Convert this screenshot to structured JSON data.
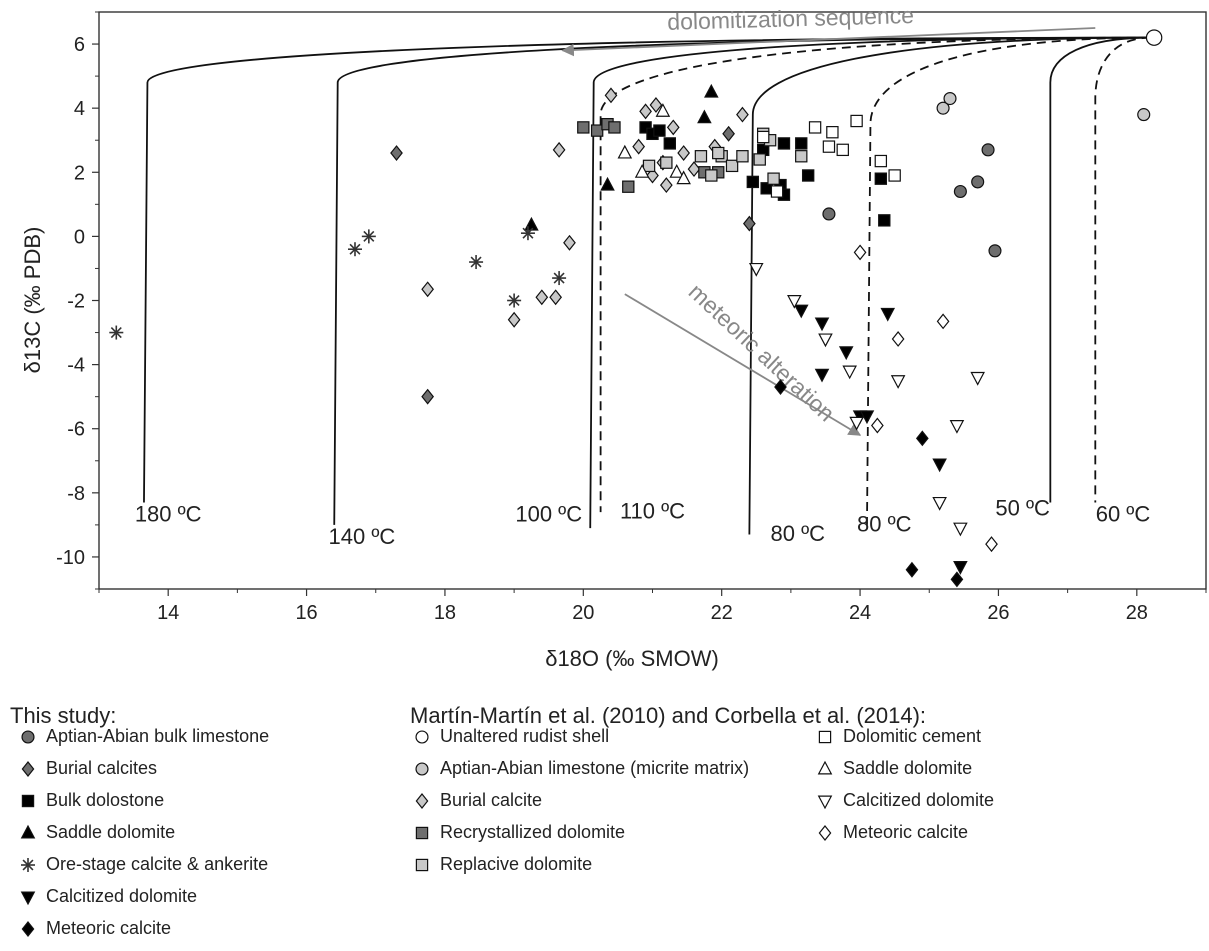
{
  "chart_data": {
    "type": "scatter",
    "title": "",
    "xlabel": "δ18O (‰ SMOW)",
    "ylabel": "δ13C (‰ PDB)",
    "xlim": [
      13,
      29
    ],
    "ylim": [
      -11,
      7
    ],
    "xticks": [
      14,
      16,
      18,
      20,
      22,
      24,
      26,
      28
    ],
    "yticks": [
      6,
      4,
      2,
      0,
      -2,
      -4,
      -6,
      -8,
      -10
    ],
    "grid": false,
    "curves": [
      {
        "label": "180 ºC",
        "style": "solid",
        "start": [
          28.2,
          6.2
        ],
        "corner": [
          13.7,
          4.8
        ],
        "end": [
          13.65,
          -8.3
        ]
      },
      {
        "label": "140 ºC",
        "style": "solid",
        "start": [
          28.2,
          6.2
        ],
        "corner": [
          16.45,
          4.8
        ],
        "end": [
          16.4,
          -9.0
        ]
      },
      {
        "label": "100 ºC",
        "style": "solid",
        "start": [
          28.2,
          6.2
        ],
        "corner": [
          20.15,
          4.8
        ],
        "end": [
          20.1,
          -9.1
        ]
      },
      {
        "label": "110 ºC",
        "style": "dashed",
        "start": [
          28.2,
          6.2
        ],
        "corner": [
          20.25,
          3.8
        ],
        "end": [
          20.25,
          -8.6
        ]
      },
      {
        "label": "80 ºC",
        "style": "solid",
        "start": [
          28.2,
          6.2
        ],
        "corner": [
          22.45,
          3.8
        ],
        "end": [
          22.4,
          -9.3
        ]
      },
      {
        "label": "80 ºC",
        "style": "dashed",
        "start": [
          28.2,
          6.2
        ],
        "corner": [
          24.15,
          3.5
        ],
        "end": [
          24.1,
          -9.0
        ]
      },
      {
        "label": "50 ºC",
        "style": "solid",
        "start": [
          28.2,
          6.2
        ],
        "corner": [
          26.75,
          4.8
        ],
        "end": [
          26.75,
          -8.3
        ]
      },
      {
        "label": "60 ºC",
        "style": "dashed",
        "start": [
          28.2,
          6.2
        ],
        "corner": [
          27.4,
          4.3
        ],
        "end": [
          27.4,
          -8.3
        ]
      }
    ],
    "curve_labels": [
      {
        "text": "180 ºC",
        "x": 14.0,
        "y": -8.9
      },
      {
        "text": "140 ºC",
        "x": 16.8,
        "y": -9.6
      },
      {
        "text": "100 ºC",
        "x": 19.5,
        "y": -8.9
      },
      {
        "text": "110 ºC",
        "x": 21.0,
        "y": -8.8
      },
      {
        "text": "80 ºC",
        "x": 23.1,
        "y": -9.5
      },
      {
        "text": "80 ºC",
        "x": 24.35,
        "y": -9.2
      },
      {
        "text": "50 ºC",
        "x": 26.35,
        "y": -8.7
      },
      {
        "text": "60 ºC",
        "x": 27.8,
        "y": -8.9
      }
    ],
    "arrows": [
      {
        "label": "dolomitization sequence",
        "from": [
          27.4,
          6.5
        ],
        "to": [
          19.7,
          5.8
        ],
        "label_x": 23.0,
        "label_y": 6.55,
        "rotate": -1.6
      },
      {
        "label": "meteoric alteration",
        "from": [
          20.6,
          -1.8
        ],
        "to": [
          24.0,
          -6.2
        ],
        "label_x": 22.5,
        "label_y": -3.8,
        "rotate": 43
      }
    ],
    "series": [
      {
        "name": "Aptian-Abian bulk limestone",
        "group": "This study",
        "marker": "circle",
        "fill": "#6e6e6e",
        "points": [
          [
            23.55,
            0.7
          ],
          [
            25.45,
            1.4
          ],
          [
            25.7,
            1.7
          ],
          [
            25.85,
            2.7
          ],
          [
            25.95,
            -0.45
          ]
        ]
      },
      {
        "name": "Burial calcites",
        "group": "This study",
        "marker": "diamond",
        "fill": "#6e6e6e",
        "points": [
          [
            17.3,
            2.6
          ],
          [
            17.75,
            -5.0
          ],
          [
            22.4,
            0.4
          ],
          [
            22.1,
            3.2
          ]
        ]
      },
      {
        "name": "Bulk dolostone",
        "group": "This study",
        "marker": "square",
        "fill": "#000000",
        "points": [
          [
            20.9,
            3.4
          ],
          [
            21.0,
            3.2
          ],
          [
            21.1,
            3.3
          ],
          [
            21.25,
            2.9
          ],
          [
            22.45,
            1.7
          ],
          [
            22.6,
            2.7
          ],
          [
            22.65,
            1.5
          ],
          [
            22.9,
            2.9
          ],
          [
            22.85,
            1.6
          ],
          [
            22.9,
            1.3
          ],
          [
            23.15,
            2.9
          ],
          [
            23.25,
            1.9
          ],
          [
            24.3,
            1.8
          ],
          [
            24.35,
            0.5
          ]
        ]
      },
      {
        "name": "Saddle dolomite",
        "group": "This study",
        "marker": "triangle-up",
        "fill": "#000000",
        "points": [
          [
            20.35,
            1.6
          ],
          [
            21.75,
            3.7
          ],
          [
            21.85,
            4.5
          ],
          [
            19.25,
            0.35
          ]
        ]
      },
      {
        "name": "Ore-stage calcite & ankerite",
        "group": "This study",
        "marker": "asterisk",
        "fill": "#333333",
        "points": [
          [
            13.25,
            -3.0
          ],
          [
            16.7,
            -0.4
          ],
          [
            16.9,
            0.0
          ],
          [
            18.45,
            -0.8
          ],
          [
            19.0,
            -2.0
          ],
          [
            19.2,
            0.1
          ],
          [
            19.65,
            -1.3
          ]
        ]
      },
      {
        "name": "Calcitized dolomite",
        "group": "This study",
        "marker": "triangle-down",
        "fill": "#000000",
        "points": [
          [
            23.15,
            -2.3
          ],
          [
            23.45,
            -2.7
          ],
          [
            23.45,
            -4.3
          ],
          [
            23.8,
            -3.6
          ],
          [
            24.0,
            -5.6
          ],
          [
            24.1,
            -5.6
          ],
          [
            24.4,
            -2.4
          ],
          [
            25.15,
            -7.1
          ],
          [
            25.45,
            -10.3
          ]
        ]
      },
      {
        "name": "Meteoric calcite",
        "group": "This study",
        "marker": "diamond",
        "fill": "#000000",
        "points": [
          [
            22.85,
            -4.7
          ],
          [
            24.75,
            -10.4
          ],
          [
            24.9,
            -6.3
          ],
          [
            25.4,
            -10.7
          ]
        ]
      },
      {
        "name": "Unaltered rudist shell",
        "group": "Martín-Martín et al. (2010) and Corbella et al. (2014)",
        "marker": "circle",
        "fill": "#ffffff",
        "points": [
          [
            28.25,
            6.2
          ]
        ]
      },
      {
        "name": "Aptian-Abian limestone (micrite matrix)",
        "group": "Martín-Martín et al. (2010) and Corbella et al. (2014)",
        "marker": "circle",
        "fill": "#c8c8c8",
        "points": [
          [
            25.2,
            4.0
          ],
          [
            25.3,
            4.3
          ],
          [
            28.1,
            3.8
          ]
        ]
      },
      {
        "name": "Burial calcite",
        "group": "Martín-Martín et al. (2010) and Corbella et al. (2014)",
        "marker": "diamond",
        "fill": "#c8c8c8",
        "points": [
          [
            20.4,
            4.4
          ],
          [
            19.65,
            2.7
          ],
          [
            19.8,
            -0.2
          ],
          [
            17.75,
            -1.65
          ],
          [
            19.0,
            -2.6
          ],
          [
            19.4,
            -1.9
          ],
          [
            19.6,
            -1.9
          ],
          [
            20.8,
            2.8
          ],
          [
            20.9,
            3.9
          ],
          [
            21.05,
            4.1
          ],
          [
            21.15,
            2.3
          ],
          [
            21.3,
            3.4
          ],
          [
            21.45,
            2.6
          ],
          [
            21.6,
            2.1
          ],
          [
            21.9,
            2.8
          ],
          [
            22.3,
            3.8
          ],
          [
            21.0,
            1.9
          ],
          [
            21.2,
            1.6
          ]
        ]
      },
      {
        "name": "Recrystallized dolomite",
        "group": "Martín-Martín et al. (2010) and Corbella et al. (2014)",
        "marker": "square",
        "fill": "#6e6e6e",
        "points": [
          [
            20.0,
            3.4
          ],
          [
            20.2,
            3.3
          ],
          [
            20.35,
            3.5
          ],
          [
            20.45,
            3.4
          ],
          [
            20.65,
            1.55
          ],
          [
            21.75,
            2.0
          ],
          [
            21.95,
            2.0
          ]
        ]
      },
      {
        "name": "Replacive dolomite",
        "group": "Martín-Martín et al. (2010) and Corbella et al. (2014)",
        "marker": "square",
        "fill": "#c8c8c8",
        "points": [
          [
            20.95,
            2.2
          ],
          [
            21.2,
            2.3
          ],
          [
            21.7,
            2.5
          ],
          [
            21.85,
            1.9
          ],
          [
            22.0,
            2.5
          ],
          [
            22.15,
            2.2
          ],
          [
            22.3,
            2.5
          ],
          [
            22.55,
            2.4
          ],
          [
            22.6,
            3.2
          ],
          [
            22.7,
            3.0
          ],
          [
            22.75,
            1.8
          ],
          [
            23.15,
            2.5
          ],
          [
            21.95,
            2.6
          ]
        ]
      },
      {
        "name": "Dolomitic cement",
        "group": "Martín-Martín et al. (2010) and Corbella et al. (2014)",
        "marker": "square",
        "fill": "#ffffff",
        "points": [
          [
            22.6,
            3.1
          ],
          [
            23.35,
            3.4
          ],
          [
            23.55,
            2.8
          ],
          [
            23.6,
            3.25
          ],
          [
            23.75,
            2.7
          ],
          [
            23.95,
            3.6
          ],
          [
            24.3,
            2.35
          ],
          [
            24.5,
            1.9
          ],
          [
            22.8,
            1.4
          ]
        ]
      },
      {
        "name": "Saddle dolomite",
        "group": "Martín-Martín et al. (2010) and Corbella et al. (2014)",
        "marker": "triangle-up",
        "fill": "#ffffff",
        "points": [
          [
            20.6,
            2.6
          ],
          [
            20.85,
            2.0
          ],
          [
            21.15,
            3.9
          ],
          [
            21.35,
            2.0
          ],
          [
            21.45,
            1.8
          ]
        ]
      },
      {
        "name": "Calcitized dolomite",
        "group": "Martín-Martín et al. (2010) and Corbella et al. (2014)",
        "marker": "triangle-down",
        "fill": "#ffffff",
        "points": [
          [
            22.5,
            -1.0
          ],
          [
            23.05,
            -2.0
          ],
          [
            23.5,
            -3.2
          ],
          [
            23.85,
            -4.2
          ],
          [
            23.95,
            -5.8
          ],
          [
            24.55,
            -4.5
          ],
          [
            25.15,
            -8.3
          ],
          [
            25.4,
            -5.9
          ],
          [
            25.45,
            -9.1
          ],
          [
            25.7,
            -4.4
          ]
        ]
      },
      {
        "name": "Meteoric calcite",
        "group": "Martín-Martín et al. (2010) and Corbella et al. (2014)",
        "marker": "diamond",
        "fill": "#ffffff",
        "points": [
          [
            24.0,
            -0.5
          ],
          [
            24.25,
            -5.9
          ],
          [
            24.55,
            -3.2
          ],
          [
            25.2,
            -2.65
          ],
          [
            25.9,
            -9.6
          ]
        ]
      }
    ]
  },
  "legend": {
    "this_study_title": "This study:",
    "literature_title": "Martín-Martín et al. (2010) and Corbella et al. (2014):",
    "items": [
      {
        "label": "Aptian-Abian bulk limestone",
        "marker": "circle",
        "fill": "#6e6e6e"
      },
      {
        "label": "Burial calcites",
        "marker": "diamond",
        "fill": "#6e6e6e"
      },
      {
        "label": "Bulk dolostone",
        "marker": "square",
        "fill": "#000000"
      },
      {
        "label": "Saddle dolomite",
        "marker": "triangle-up",
        "fill": "#000000"
      },
      {
        "label": "Ore-stage calcite & ankerite",
        "marker": "asterisk",
        "fill": "#333333"
      },
      {
        "label": "Calcitized dolomite",
        "marker": "triangle-down",
        "fill": "#000000"
      },
      {
        "label": "Meteoric calcite",
        "marker": "diamond",
        "fill": "#000000"
      },
      {
        "label": "Unaltered rudist shell",
        "marker": "circle",
        "fill": "#ffffff"
      },
      {
        "label": "Aptian-Abian limestone (micrite matrix)",
        "marker": "circle",
        "fill": "#c8c8c8"
      },
      {
        "label": "Burial calcite",
        "marker": "diamond",
        "fill": "#c8c8c8"
      },
      {
        "label": "Recrystallized dolomite",
        "marker": "square",
        "fill": "#6e6e6e"
      },
      {
        "label": "Replacive dolomite",
        "marker": "square",
        "fill": "#c8c8c8"
      },
      {
        "label": "Dolomitic cement",
        "marker": "square",
        "fill": "#ffffff"
      },
      {
        "label": "Saddle dolomite",
        "marker": "triangle-up",
        "fill": "#ffffff"
      },
      {
        "label": "Calcitized dolomite",
        "marker": "triangle-down",
        "fill": "#ffffff"
      },
      {
        "label": "Meteoric calcite",
        "marker": "diamond",
        "fill": "#ffffff"
      }
    ]
  }
}
